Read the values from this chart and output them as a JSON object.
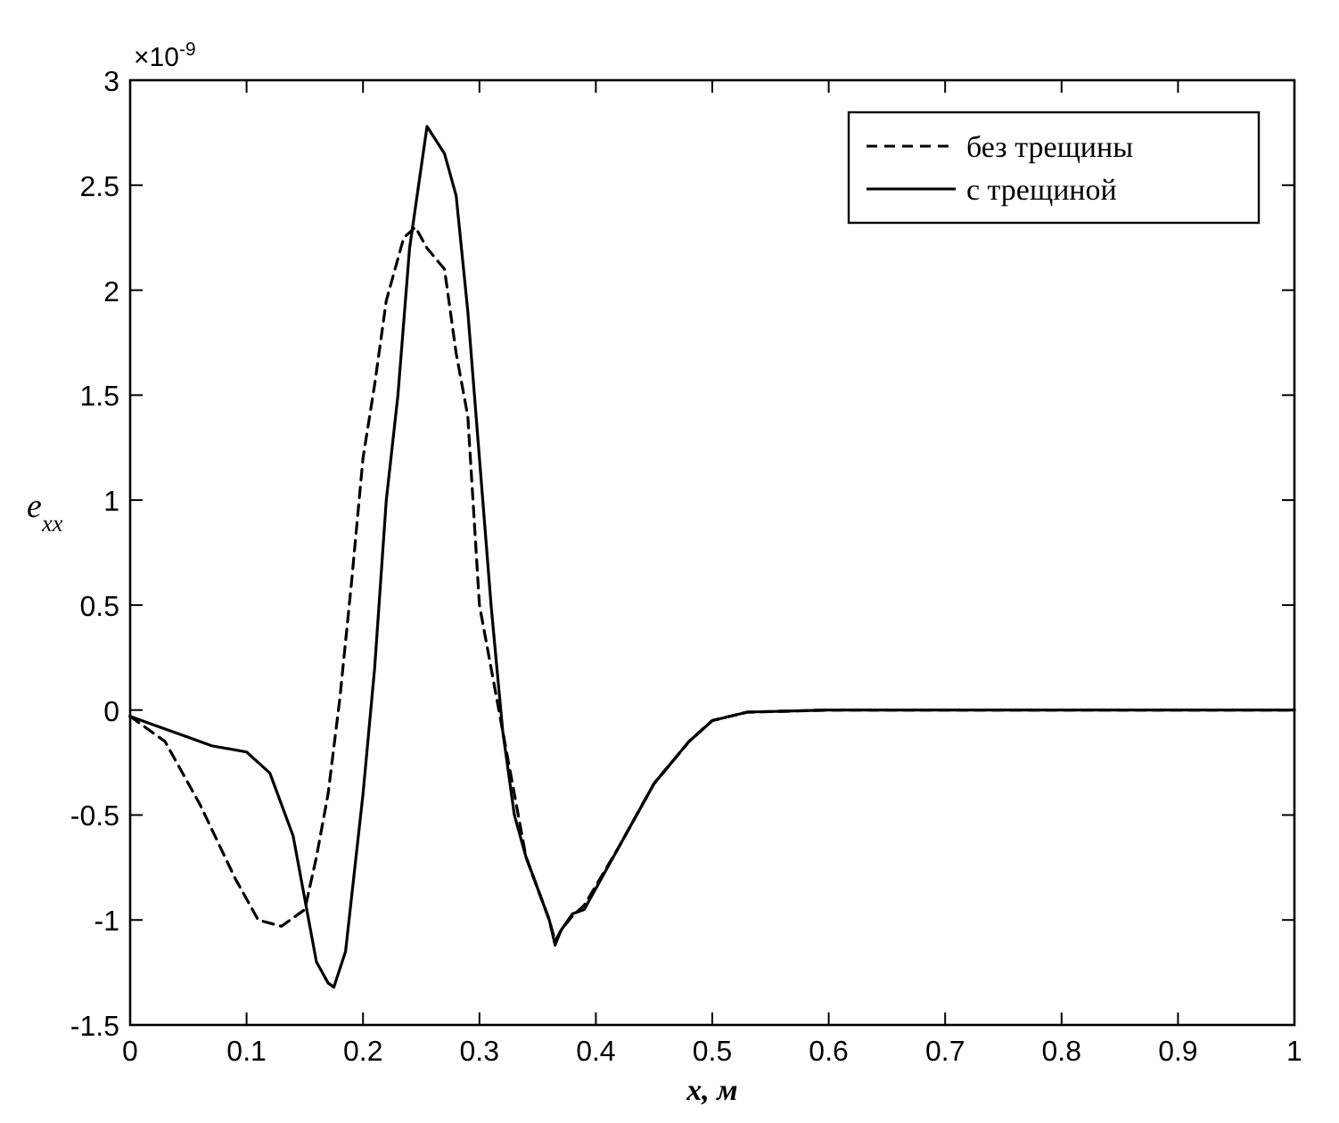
{
  "chart_data": {
    "type": "line",
    "xlabel": "x, м",
    "ylabel": "e$_{xx}$",
    "annotations": [
      "×10$^{-9}$"
    ],
    "xlim": [
      0,
      1
    ],
    "xticks": [
      0,
      0.1,
      0.2,
      0.3,
      0.4,
      0.5,
      0.6,
      0.7,
      0.8,
      0.9,
      1
    ],
    "ylim": [
      -1.5,
      3
    ],
    "yticks": [
      -1.5,
      -1,
      -0.5,
      0,
      0.5,
      1,
      1.5,
      2,
      2.5,
      3
    ],
    "grid": false,
    "legend": "top right",
    "series": [
      {
        "name": "без трещины",
        "color": "#000000",
        "line_style": "dashed",
        "x": [
          0,
          0.03,
          0.06,
          0.09,
          0.11,
          0.13,
          0.15,
          0.16,
          0.17,
          0.18,
          0.19,
          0.2,
          0.21,
          0.22,
          0.235,
          0.245,
          0.255,
          0.27,
          0.28,
          0.29,
          0.3,
          0.31,
          0.32,
          0.33,
          0.34,
          0.36,
          0.365,
          0.37,
          0.38,
          0.39,
          0.42,
          0.45,
          0.48,
          0.5,
          0.53,
          0.6,
          1
        ],
        "values": [
          -0.03,
          -0.15,
          -0.45,
          -0.8,
          -1.0,
          -1.03,
          -0.95,
          -0.7,
          -0.4,
          0.05,
          0.6,
          1.2,
          1.55,
          1.95,
          2.25,
          2.3,
          2.2,
          2.1,
          1.7,
          1.4,
          0.5,
          0.2,
          -0.1,
          -0.4,
          -0.7,
          -1.0,
          -1.1,
          -1.05,
          -0.98,
          -0.93,
          -0.65,
          -0.35,
          -0.15,
          -0.05,
          -0.01,
          0,
          0
        ]
      },
      {
        "name": "с трещиной",
        "color": "#000000",
        "line_style": "solid",
        "x": [
          0,
          0.02,
          0.05,
          0.07,
          0.1,
          0.12,
          0.14,
          0.16,
          0.17,
          0.175,
          0.185,
          0.2,
          0.21,
          0.22,
          0.23,
          0.24,
          0.255,
          0.27,
          0.28,
          0.29,
          0.3,
          0.31,
          0.32,
          0.33,
          0.34,
          0.36,
          0.365,
          0.37,
          0.38,
          0.39,
          0.42,
          0.45,
          0.48,
          0.5,
          0.53,
          0.6,
          1
        ],
        "values": [
          -0.03,
          -0.07,
          -0.13,
          -0.17,
          -0.2,
          -0.3,
          -0.6,
          -1.2,
          -1.3,
          -1.32,
          -1.15,
          -0.4,
          0.2,
          1.0,
          1.5,
          2.2,
          2.78,
          2.65,
          2.45,
          1.9,
          1.2,
          0.5,
          -0.1,
          -0.5,
          -0.7,
          -1.0,
          -1.12,
          -1.05,
          -0.97,
          -0.95,
          -0.65,
          -0.35,
          -0.15,
          -0.05,
          -0.01,
          0,
          0
        ]
      }
    ]
  }
}
